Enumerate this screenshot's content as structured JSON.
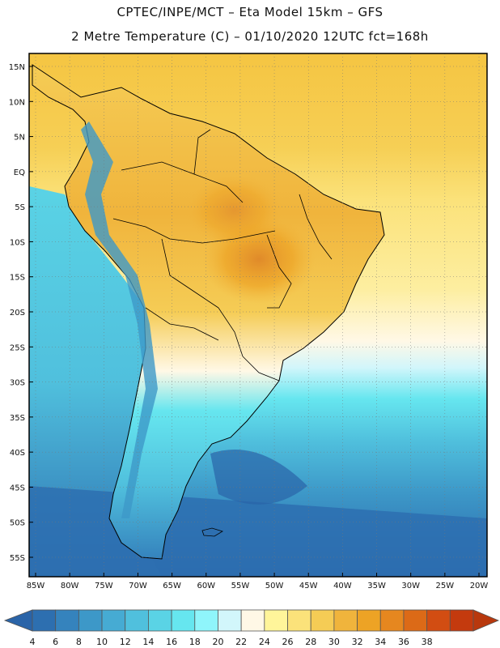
{
  "header": {
    "line1": "CPTEC/INPE/MCT –  Eta Model 15km – GFS",
    "line2": "2 Metre Temperature (C) – 01/10/2020 12UTC fct=168h"
  },
  "map": {
    "lat_labels": [
      "15N",
      "10N",
      "5N",
      "EQ",
      "5S",
      "10S",
      "15S",
      "20S",
      "25S",
      "30S",
      "35S",
      "40S",
      "45S",
      "50S",
      "55S"
    ],
    "lon_labels": [
      "85W",
      "80W",
      "75W",
      "70W",
      "65W",
      "60W",
      "55W",
      "50W",
      "45W",
      "40W",
      "35W",
      "30W",
      "25W",
      "20W"
    ],
    "colors": {
      "ocean_north": "#f5c542",
      "ocean_tropical": "#fbe27a",
      "land_hot": "#e9a93a",
      "land_hottest": "#e08a2a",
      "cool_south": "#3a8fc9",
      "cold_deep": "#2a64a8",
      "cyan": "#55d8e8",
      "border": "#000000"
    }
  },
  "colorbar": {
    "labels": [
      "4",
      "6",
      "8",
      "10",
      "12",
      "14",
      "16",
      "18",
      "20",
      "22",
      "24",
      "26",
      "28",
      "30",
      "32",
      "34",
      "36",
      "38"
    ],
    "colors": [
      "#2d6fb0",
      "#3583bd",
      "#3d98c8",
      "#46abd3",
      "#50c0dd",
      "#5ad3e5",
      "#66e6ef",
      "#8ff5fb",
      "#d2f6fb",
      "#fff8e6",
      "#fff59a",
      "#fbe27a",
      "#f5cc55",
      "#f0b43c",
      "#eda325",
      "#e6871f",
      "#dc6a17",
      "#d24d12",
      "#c43a0e"
    ],
    "left_arrow_color": "#2a64a8",
    "right_arrow_color": "#b8380d"
  }
}
